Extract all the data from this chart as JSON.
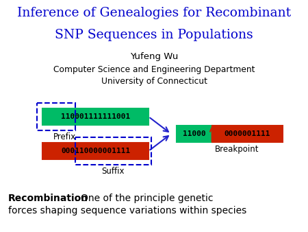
{
  "title_line1": "Inference of Genealogies for Recombinant",
  "title_line2": "SNP Sequences in Populations",
  "author": "Yufeng Wu",
  "dept": "Computer Science and Engineering Department",
  "univ": "University of Connecticut",
  "seq_top": "110001111111001",
  "seq_bottom": "000110000001111",
  "seq_result_green": "11000",
  "seq_result_red": "0000001111",
  "label_prefix": "Prefix",
  "label_suffix": "Suffix",
  "label_breakpoint": "Breakpoint",
  "recomb_bold": "Recombination",
  "recomb_rest": ": One of the principle genetic\nforces shaping sequence variations within species",
  "title_color": "#0000cc",
  "green_color": "#00bb66",
  "red_color": "#cc2200",
  "dashed_color": "#0000cc",
  "arrow_color": "#2222cc",
  "breakpoint_arrow_color": "#cc2200"
}
